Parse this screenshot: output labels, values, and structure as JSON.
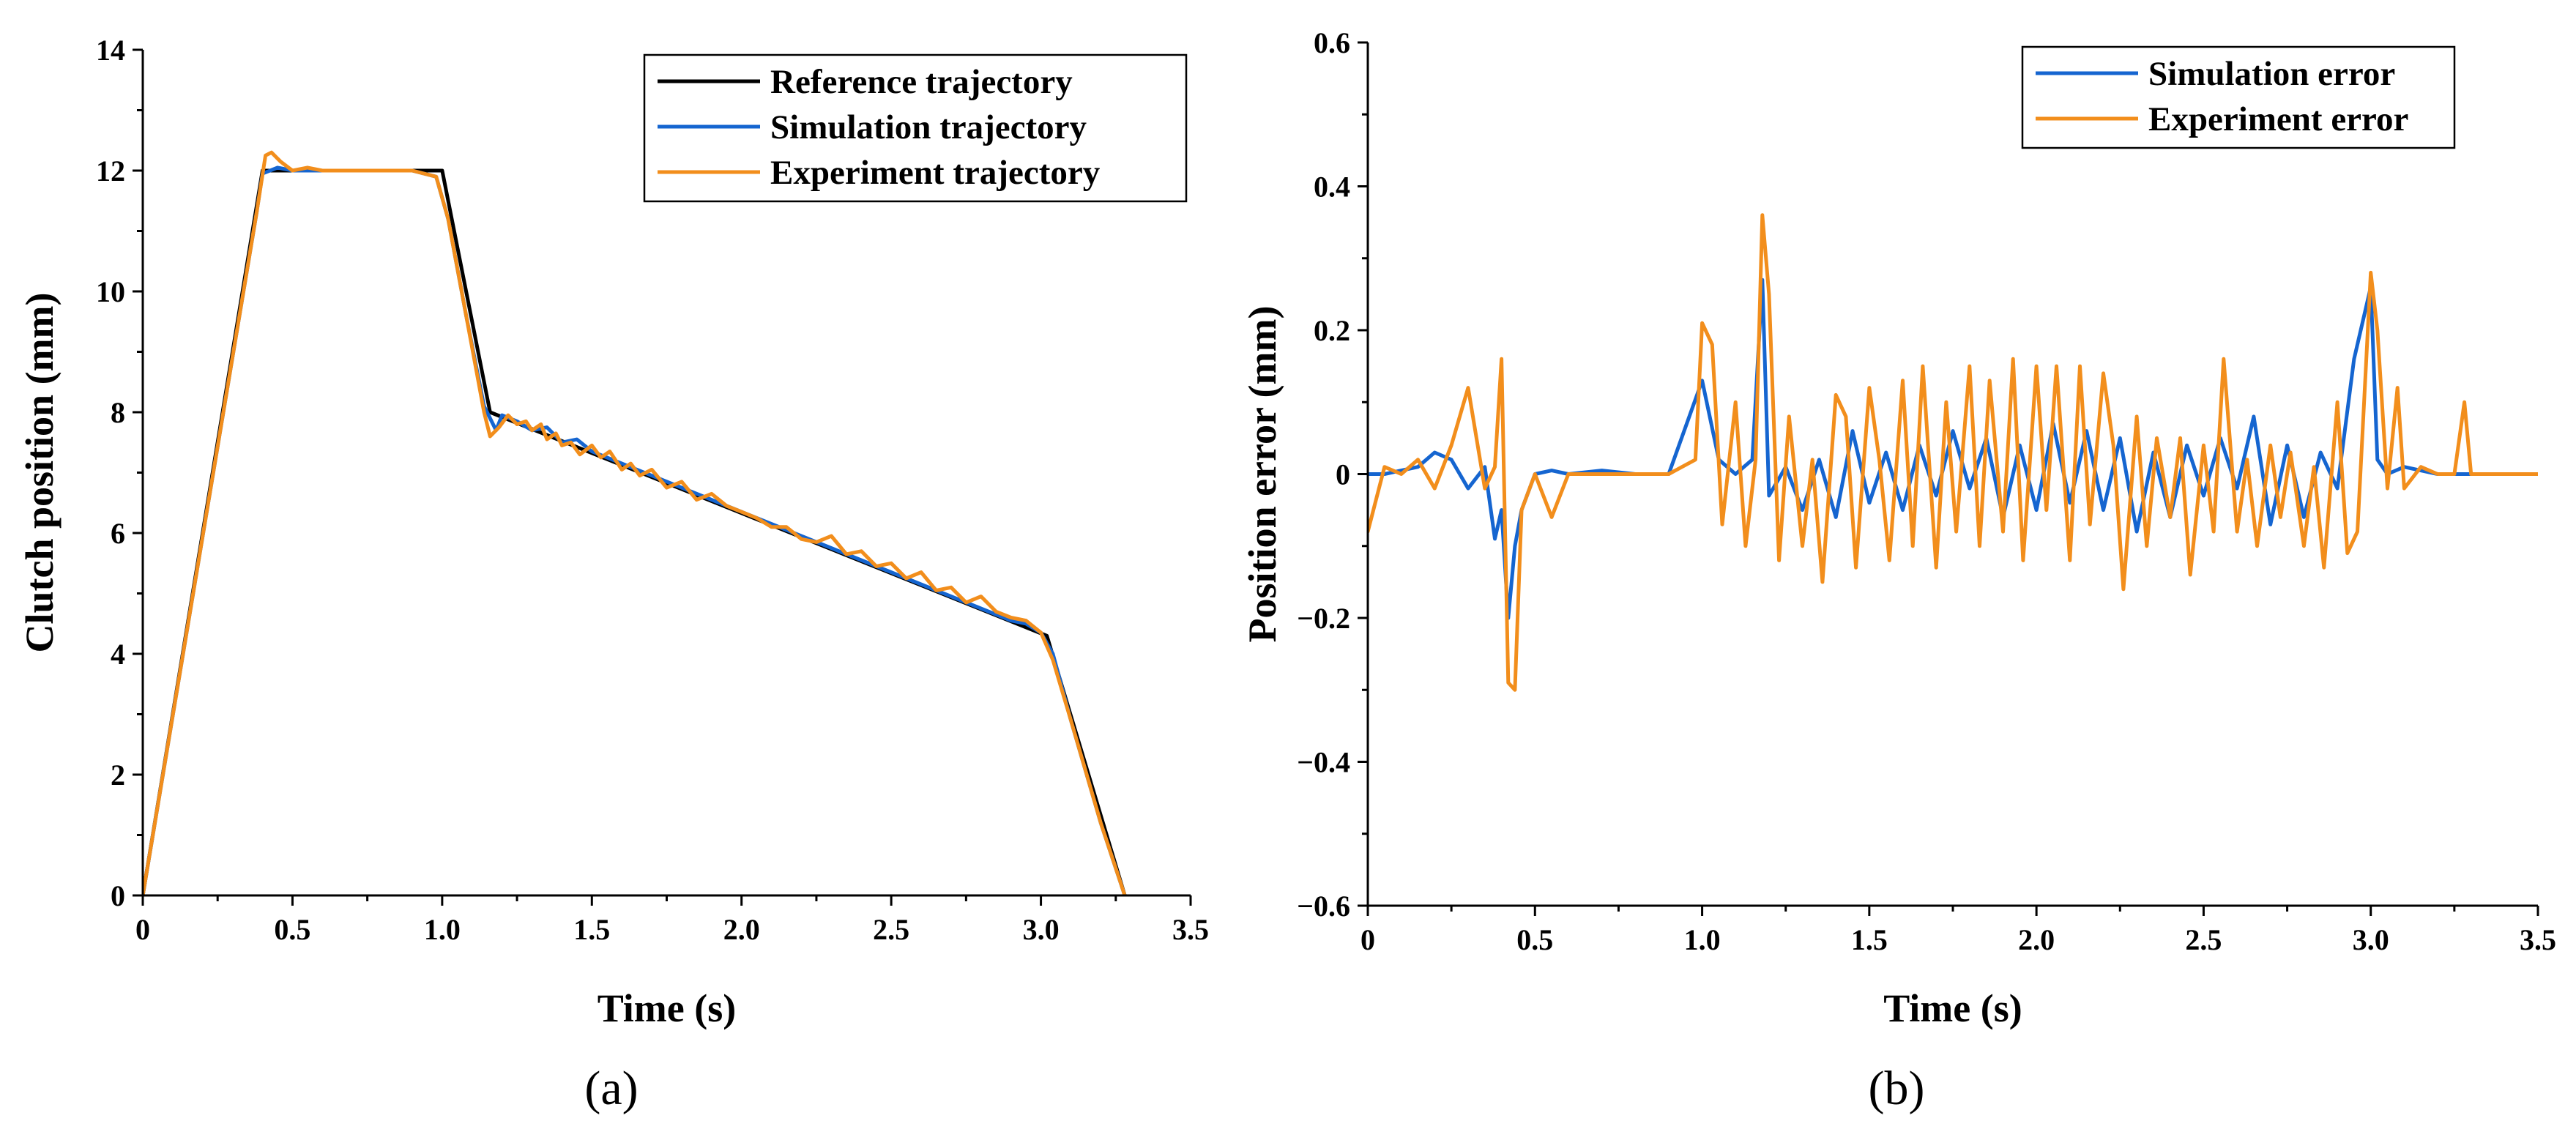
{
  "figure": {
    "colors": {
      "reference": "#000000",
      "simulation": "#1565d0",
      "experiment": "#f28e1c"
    }
  },
  "chart_data": [
    {
      "id": "a",
      "type": "line",
      "panel_label": "(a)",
      "title": "",
      "xlabel": "Time (s)",
      "ylabel": "Clutch position (mm)",
      "xlim": [
        0,
        3.5
      ],
      "ylim": [
        0,
        14
      ],
      "xticks": [
        0,
        0.5,
        1.0,
        1.5,
        2.0,
        2.5,
        3.0,
        3.5
      ],
      "xtick_labels": [
        "0",
        "0.5",
        "1.0",
        "1.5",
        "2.0",
        "2.5",
        "3.0",
        "3.5"
      ],
      "yticks": [
        0,
        2,
        4,
        6,
        8,
        10,
        12,
        14
      ],
      "ytick_labels": [
        "0",
        "2",
        "4",
        "6",
        "8",
        "10",
        "12",
        "14"
      ],
      "grid": false,
      "legend_position": "top-right",
      "series": [
        {
          "name": "Reference trajectory",
          "color": "#000000",
          "x": [
            0,
            0.4,
            1.0,
            1.16,
            3.02,
            3.28
          ],
          "y": [
            0,
            12,
            12,
            8,
            4.3,
            0
          ]
        },
        {
          "name": "Simulation trajectory",
          "color": "#1565d0",
          "x": [
            0,
            0.38,
            0.4,
            0.45,
            0.5,
            0.6,
            0.7,
            0.8,
            0.9,
            0.98,
            1.02,
            1.08,
            1.14,
            1.18,
            1.2,
            1.25,
            1.3,
            1.35,
            1.4,
            1.45,
            1.5,
            1.6,
            1.7,
            1.8,
            1.9,
            2.0,
            2.1,
            2.2,
            2.3,
            2.4,
            2.5,
            2.6,
            2.7,
            2.8,
            2.9,
            2.95,
            3.0,
            3.04,
            3.1,
            3.2,
            3.28
          ],
          "y": [
            0,
            11.3,
            11.95,
            12.05,
            12.0,
            12.0,
            12.0,
            12.0,
            12.0,
            11.9,
            11.2,
            9.6,
            8.1,
            7.7,
            7.95,
            7.85,
            7.7,
            7.75,
            7.5,
            7.55,
            7.35,
            7.15,
            6.95,
            6.75,
            6.55,
            6.35,
            6.15,
            5.95,
            5.75,
            5.55,
            5.35,
            5.15,
            4.95,
            4.75,
            4.55,
            4.5,
            4.35,
            4.0,
            2.9,
            1.2,
            0
          ]
        },
        {
          "name": "Experiment trajectory",
          "color": "#f28e1c",
          "x": [
            0,
            0.38,
            0.41,
            0.43,
            0.46,
            0.5,
            0.55,
            0.6,
            0.7,
            0.8,
            0.9,
            0.98,
            1.02,
            1.08,
            1.14,
            1.16,
            1.19,
            1.22,
            1.25,
            1.28,
            1.3,
            1.33,
            1.35,
            1.38,
            1.4,
            1.43,
            1.46,
            1.5,
            1.53,
            1.56,
            1.6,
            1.63,
            1.66,
            1.7,
            1.75,
            1.8,
            1.85,
            1.9,
            1.95,
            2.0,
            2.05,
            2.1,
            2.15,
            2.2,
            2.25,
            2.3,
            2.35,
            2.4,
            2.45,
            2.5,
            2.55,
            2.6,
            2.65,
            2.7,
            2.75,
            2.8,
            2.85,
            2.9,
            2.95,
            3.0,
            3.04,
            3.1,
            3.2,
            3.28
          ],
          "y": [
            0,
            11.3,
            12.25,
            12.3,
            12.15,
            12.0,
            12.05,
            12.0,
            12.0,
            12.0,
            12.0,
            11.9,
            11.2,
            9.6,
            8.0,
            7.6,
            7.75,
            7.95,
            7.8,
            7.85,
            7.7,
            7.8,
            7.55,
            7.65,
            7.45,
            7.5,
            7.3,
            7.45,
            7.25,
            7.35,
            7.05,
            7.15,
            6.95,
            7.05,
            6.75,
            6.85,
            6.55,
            6.65,
            6.45,
            6.35,
            6.25,
            6.1,
            6.1,
            5.9,
            5.85,
            5.95,
            5.65,
            5.7,
            5.45,
            5.5,
            5.25,
            5.35,
            5.05,
            5.1,
            4.85,
            4.95,
            4.7,
            4.6,
            4.55,
            4.35,
            3.9,
            2.9,
            1.2,
            0
          ]
        }
      ]
    },
    {
      "id": "b",
      "type": "line",
      "panel_label": "(b)",
      "title": "",
      "xlabel": "Time (s)",
      "ylabel": "Position error (mm)",
      "xlim": [
        0,
        3.5
      ],
      "ylim": [
        -0.6,
        0.6
      ],
      "xticks": [
        0,
        0.5,
        1.0,
        1.5,
        2.0,
        2.5,
        3.0,
        3.5
      ],
      "xtick_labels": [
        "0",
        "0.5",
        "1.0",
        "1.5",
        "2.0",
        "2.5",
        "3.0",
        "3.5"
      ],
      "yticks": [
        -0.6,
        -0.4,
        -0.2,
        0,
        0.2,
        0.4,
        0.6
      ],
      "ytick_labels": [
        "−0.6",
        "−0.4",
        "−0.2",
        "0",
        "0.2",
        "0.4",
        "0.6"
      ],
      "grid": false,
      "legend_position": "top-right",
      "series": [
        {
          "name": "Simulation error",
          "color": "#1565d0",
          "x": [
            0,
            0.05,
            0.1,
            0.15,
            0.2,
            0.25,
            0.3,
            0.35,
            0.38,
            0.4,
            0.42,
            0.44,
            0.46,
            0.5,
            0.55,
            0.6,
            0.7,
            0.8,
            0.9,
            1.0,
            1.05,
            1.1,
            1.15,
            1.18,
            1.2,
            1.25,
            1.3,
            1.35,
            1.4,
            1.45,
            1.5,
            1.55,
            1.6,
            1.65,
            1.7,
            1.75,
            1.8,
            1.85,
            1.9,
            1.95,
            2.0,
            2.05,
            2.1,
            2.15,
            2.2,
            2.25,
            2.3,
            2.35,
            2.4,
            2.45,
            2.5,
            2.55,
            2.6,
            2.65,
            2.7,
            2.75,
            2.8,
            2.85,
            2.9,
            2.95,
            3.0,
            3.02,
            3.05,
            3.1,
            3.2,
            3.28,
            3.5
          ],
          "y": [
            0,
            0,
            0.005,
            0.01,
            0.03,
            0.02,
            -0.02,
            0.01,
            -0.09,
            -0.05,
            -0.2,
            -0.1,
            -0.05,
            0,
            0.005,
            0,
            0.005,
            0,
            0,
            0.13,
            0.02,
            0,
            0.02,
            0.27,
            -0.03,
            0.01,
            -0.05,
            0.02,
            -0.06,
            0.06,
            -0.04,
            0.03,
            -0.05,
            0.04,
            -0.03,
            0.06,
            -0.02,
            0.05,
            -0.06,
            0.04,
            -0.05,
            0.07,
            -0.04,
            0.06,
            -0.05,
            0.05,
            -0.08,
            0.03,
            -0.06,
            0.04,
            -0.03,
            0.05,
            -0.02,
            0.08,
            -0.07,
            0.04,
            -0.06,
            0.03,
            -0.02,
            0.16,
            0.26,
            0.02,
            0,
            0.01,
            0,
            0,
            0
          ]
        },
        {
          "name": "Experiment error",
          "color": "#f28e1c",
          "x": [
            0,
            0.05,
            0.1,
            0.15,
            0.2,
            0.25,
            0.3,
            0.35,
            0.38,
            0.4,
            0.42,
            0.44,
            0.46,
            0.5,
            0.55,
            0.6,
            0.7,
            0.8,
            0.9,
            0.98,
            1.0,
            1.03,
            1.06,
            1.1,
            1.13,
            1.16,
            1.18,
            1.2,
            1.23,
            1.26,
            1.3,
            1.33,
            1.36,
            1.4,
            1.43,
            1.46,
            1.5,
            1.53,
            1.56,
            1.6,
            1.63,
            1.66,
            1.7,
            1.73,
            1.76,
            1.8,
            1.83,
            1.86,
            1.9,
            1.93,
            1.96,
            2.0,
            2.03,
            2.06,
            2.1,
            2.13,
            2.16,
            2.2,
            2.23,
            2.26,
            2.3,
            2.33,
            2.36,
            2.4,
            2.43,
            2.46,
            2.5,
            2.53,
            2.56,
            2.6,
            2.63,
            2.66,
            2.7,
            2.73,
            2.76,
            2.8,
            2.83,
            2.86,
            2.9,
            2.93,
            2.96,
            3.0,
            3.02,
            3.05,
            3.08,
            3.1,
            3.15,
            3.2,
            3.25,
            3.28,
            3.3,
            3.35,
            3.5
          ],
          "y": [
            -0.08,
            0.01,
            0,
            0.02,
            -0.02,
            0.04,
            0.12,
            -0.02,
            0.01,
            0.16,
            -0.29,
            -0.3,
            -0.05,
            0,
            -0.06,
            0,
            0,
            0,
            0,
            0.02,
            0.21,
            0.18,
            -0.07,
            0.1,
            -0.1,
            0.02,
            0.36,
            0.25,
            -0.12,
            0.08,
            -0.1,
            0.02,
            -0.15,
            0.11,
            0.08,
            -0.13,
            0.12,
            0.02,
            -0.12,
            0.13,
            -0.1,
            0.15,
            -0.13,
            0.1,
            -0.08,
            0.15,
            -0.1,
            0.13,
            -0.08,
            0.16,
            -0.12,
            0.15,
            -0.05,
            0.15,
            -0.12,
            0.15,
            -0.07,
            0.14,
            0.04,
            -0.16,
            0.08,
            -0.1,
            0.05,
            -0.06,
            0.05,
            -0.14,
            0.04,
            -0.08,
            0.16,
            -0.08,
            0.02,
            -0.1,
            0.04,
            -0.06,
            0.03,
            -0.1,
            0.01,
            -0.13,
            0.1,
            -0.11,
            -0.08,
            0.28,
            0.2,
            -0.02,
            0.12,
            -0.02,
            0.01,
            0,
            0,
            0.1,
            0,
            0,
            0
          ]
        }
      ]
    }
  ]
}
